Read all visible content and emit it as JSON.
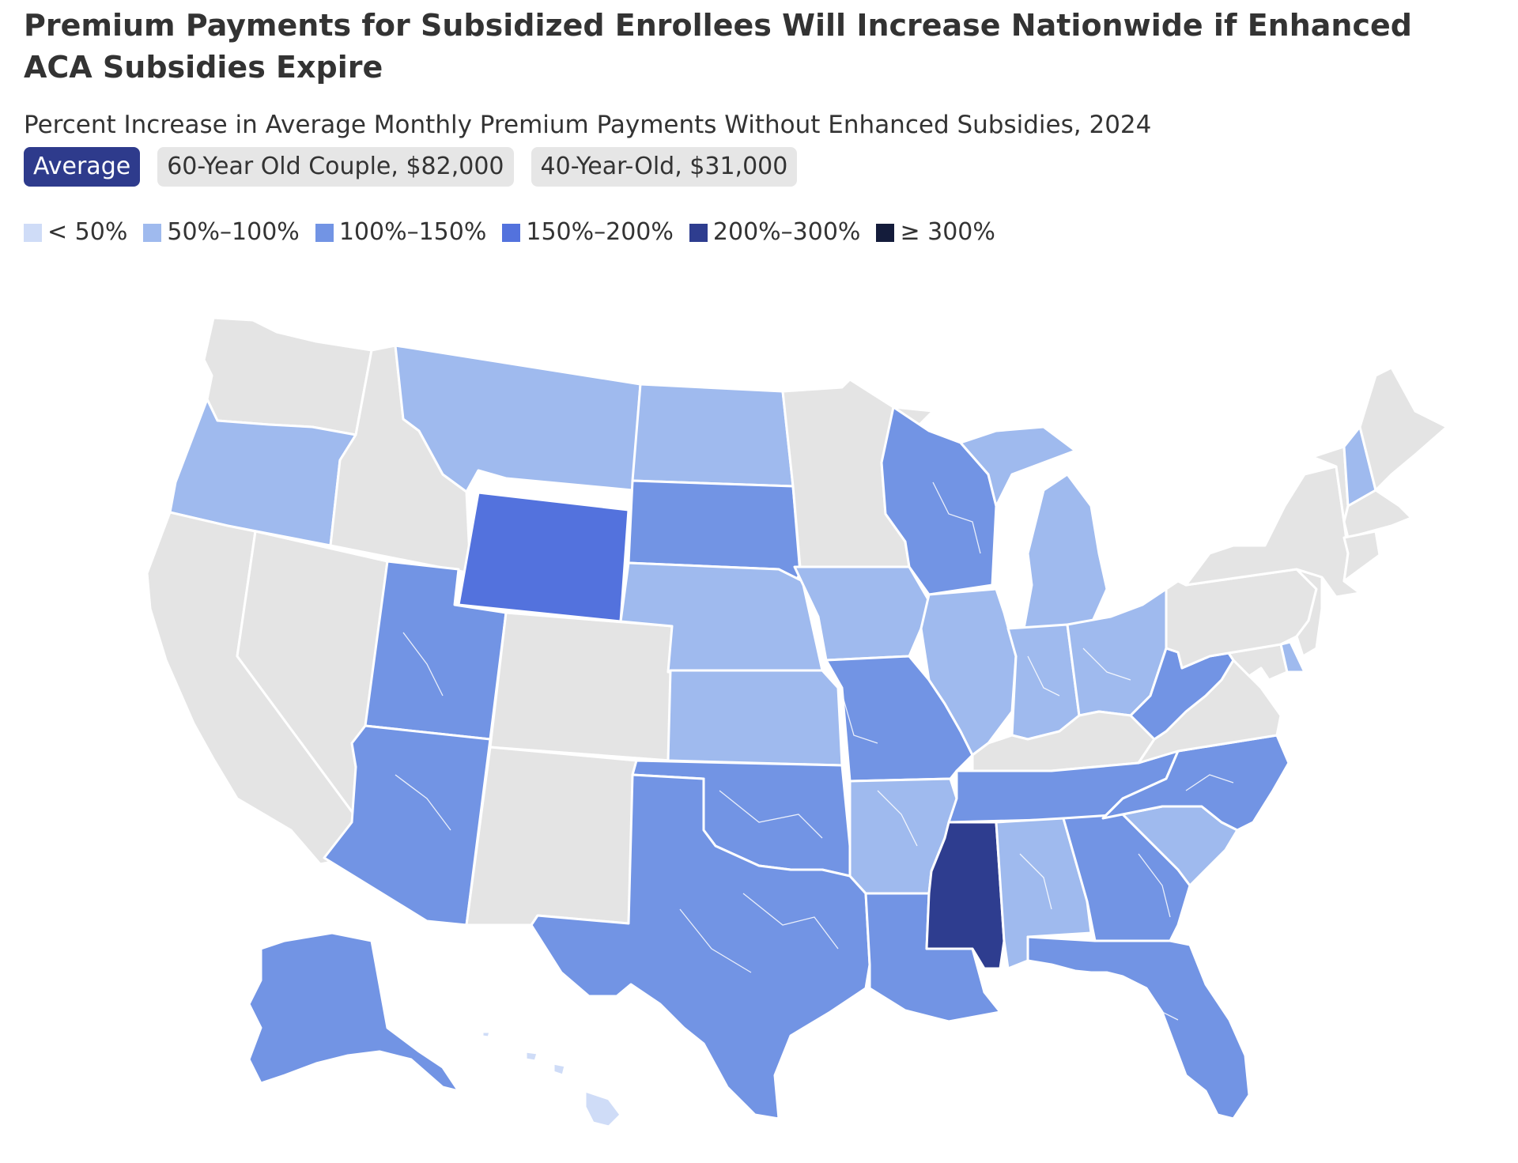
{
  "title": "Premium Payments for Subsidized Enrollees Will Increase Nationwide if Enhanced ACA Subsidies Expire",
  "subtitle": "Percent Increase in Average Monthly Premium Payments Without Enhanced Subsidies, 2024",
  "tabs": [
    {
      "label": "Average",
      "active": true
    },
    {
      "label": "60-Year Old Couple, $82,000",
      "active": false
    },
    {
      "label": "40-Year-Old, $31,000",
      "active": false
    }
  ],
  "legend": [
    {
      "label": "< 50%",
      "color": "#cfdcf7"
    },
    {
      "label": "50%–100%",
      "color": "#9fbaee"
    },
    {
      "label": "100%–150%",
      "color": "#7294e4"
    },
    {
      "label": "150%–200%",
      "color": "#5372dd"
    },
    {
      "label": "200%–300%",
      "color": "#2e3d8f"
    },
    {
      "label": "≥ 300%",
      "color": "#141c3b"
    }
  ],
  "no_data_color": "#e4e4e4",
  "map_regions": [
    {
      "id": "WA",
      "category": "no-data"
    },
    {
      "id": "OR",
      "category": "50%–100%"
    },
    {
      "id": "CA",
      "category": "no-data"
    },
    {
      "id": "NV",
      "category": "no-data"
    },
    {
      "id": "ID",
      "category": "no-data"
    },
    {
      "id": "MT",
      "category": "50%–100%"
    },
    {
      "id": "WY",
      "category": "150%–200%"
    },
    {
      "id": "UT",
      "category": "100%–150%"
    },
    {
      "id": "AZ",
      "category": "100%–150%"
    },
    {
      "id": "CO",
      "category": "no-data"
    },
    {
      "id": "NM",
      "category": "no-data"
    },
    {
      "id": "ND",
      "category": "50%–100%"
    },
    {
      "id": "SD",
      "category": "100%–150%"
    },
    {
      "id": "NE",
      "category": "50%–100%"
    },
    {
      "id": "KS",
      "category": "50%–100%"
    },
    {
      "id": "OK",
      "category": "100%–150%"
    },
    {
      "id": "TX",
      "category": "100%–150%"
    },
    {
      "id": "MN",
      "category": "no-data"
    },
    {
      "id": "IA",
      "category": "50%–100%"
    },
    {
      "id": "MO",
      "category": "100%–150%"
    },
    {
      "id": "AR",
      "category": "50%–100%"
    },
    {
      "id": "LA",
      "category": "100%–150%"
    },
    {
      "id": "WI",
      "category": "100%–150%"
    },
    {
      "id": "IL",
      "category": "50%–100%"
    },
    {
      "id": "MI",
      "category": "50%–100%"
    },
    {
      "id": "IN",
      "category": "50%–100%"
    },
    {
      "id": "OH",
      "category": "50%–100%"
    },
    {
      "id": "KY",
      "category": "no-data"
    },
    {
      "id": "TN",
      "category": "100%–150%"
    },
    {
      "id": "MS",
      "category": "200%–300%"
    },
    {
      "id": "AL",
      "category": "50%–100%"
    },
    {
      "id": "GA",
      "category": "100%–150%"
    },
    {
      "id": "FL",
      "category": "100%–150%"
    },
    {
      "id": "SC",
      "category": "50%–100%"
    },
    {
      "id": "NC",
      "category": "100%–150%"
    },
    {
      "id": "VA",
      "category": "no-data"
    },
    {
      "id": "WV",
      "category": "100%–150%"
    },
    {
      "id": "PA",
      "category": "no-data"
    },
    {
      "id": "NY",
      "category": "no-data"
    },
    {
      "id": "VT",
      "category": "no-data"
    },
    {
      "id": "NH",
      "category": "50%–100%"
    },
    {
      "id": "ME",
      "category": "no-data"
    },
    {
      "id": "MA",
      "category": "no-data"
    },
    {
      "id": "CT",
      "category": "no-data"
    },
    {
      "id": "NJ",
      "category": "no-data"
    },
    {
      "id": "DE",
      "category": "50%–100%"
    },
    {
      "id": "MD",
      "category": "no-data"
    },
    {
      "id": "AK",
      "category": "100%–150%"
    },
    {
      "id": "HI",
      "category": "< 50%"
    }
  ]
}
